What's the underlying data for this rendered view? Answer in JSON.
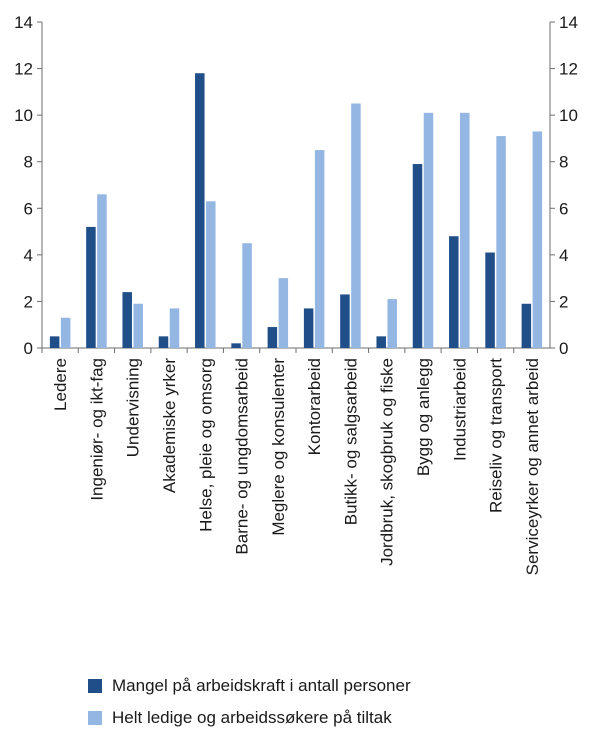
{
  "chart_data": {
    "type": "bar",
    "categories": [
      "Ledere",
      "Ingeniør- og ikt-fag",
      "Undervisning",
      "Akademiske yrker",
      "Helse, pleie og omsorg",
      "Barne- og ungdomsarbeid",
      "Meglere og konsulenter",
      "Kontorarbeid",
      "Butikk- og salgsarbeid",
      "Jordbruk, skogbruk og fiske",
      "Bygg og anlegg",
      "Industriarbeid",
      "Reiseliv og transport",
      "Serviceyrker og annet arbeid"
    ],
    "series": [
      {
        "name": "Mangel på arbeidskraft i antall personer",
        "color": "#1f4e89",
        "values": [
          0.5,
          5.2,
          2.4,
          0.5,
          11.8,
          0.2,
          0.9,
          1.7,
          2.3,
          0.5,
          7.9,
          4.8,
          4.1,
          1.9
        ]
      },
      {
        "name": "Helt ledige og arbeidssøkere på tiltak",
        "color": "#93b6e2",
        "values": [
          1.3,
          6.6,
          1.9,
          1.7,
          6.3,
          4.5,
          3.0,
          8.5,
          10.5,
          2.1,
          10.1,
          10.1,
          9.1,
          9.3
        ]
      }
    ],
    "yticks": [
      0,
      2,
      4,
      6,
      8,
      10,
      12,
      14
    ],
    "ylim": [
      0,
      14
    ],
    "secondary_axis": true,
    "grid": false,
    "legend_position": "bottom"
  }
}
